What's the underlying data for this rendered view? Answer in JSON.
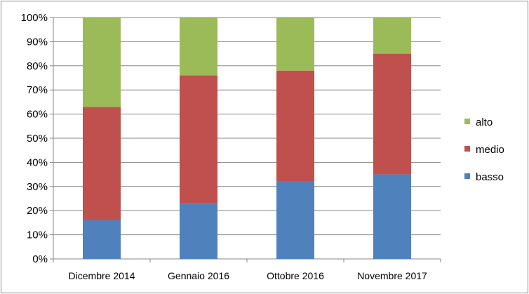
{
  "chart_data": {
    "type": "bar",
    "stacked": true,
    "categories": [
      "Dicembre  2014",
      "Gennaio 2016",
      "Ottobre  2016",
      "Novembre 2017"
    ],
    "series": [
      {
        "name": "basso",
        "values": [
          16,
          23,
          32,
          35
        ],
        "color": "#4f81bd"
      },
      {
        "name": "medio",
        "values": [
          47,
          53,
          46,
          50
        ],
        "color": "#c0504d"
      },
      {
        "name": "alto",
        "values": [
          37,
          24,
          22,
          15
        ],
        "color": "#9bbb59"
      }
    ],
    "yticks": [
      "0%",
      "10%",
      "20%",
      "30%",
      "40%",
      "50%",
      "60%",
      "70%",
      "80%",
      "90%",
      "100%"
    ],
    "ylim": [
      0,
      100
    ],
    "grid": true,
    "legend_position": "right",
    "legend_order": [
      "alto",
      "medio",
      "basso"
    ]
  }
}
